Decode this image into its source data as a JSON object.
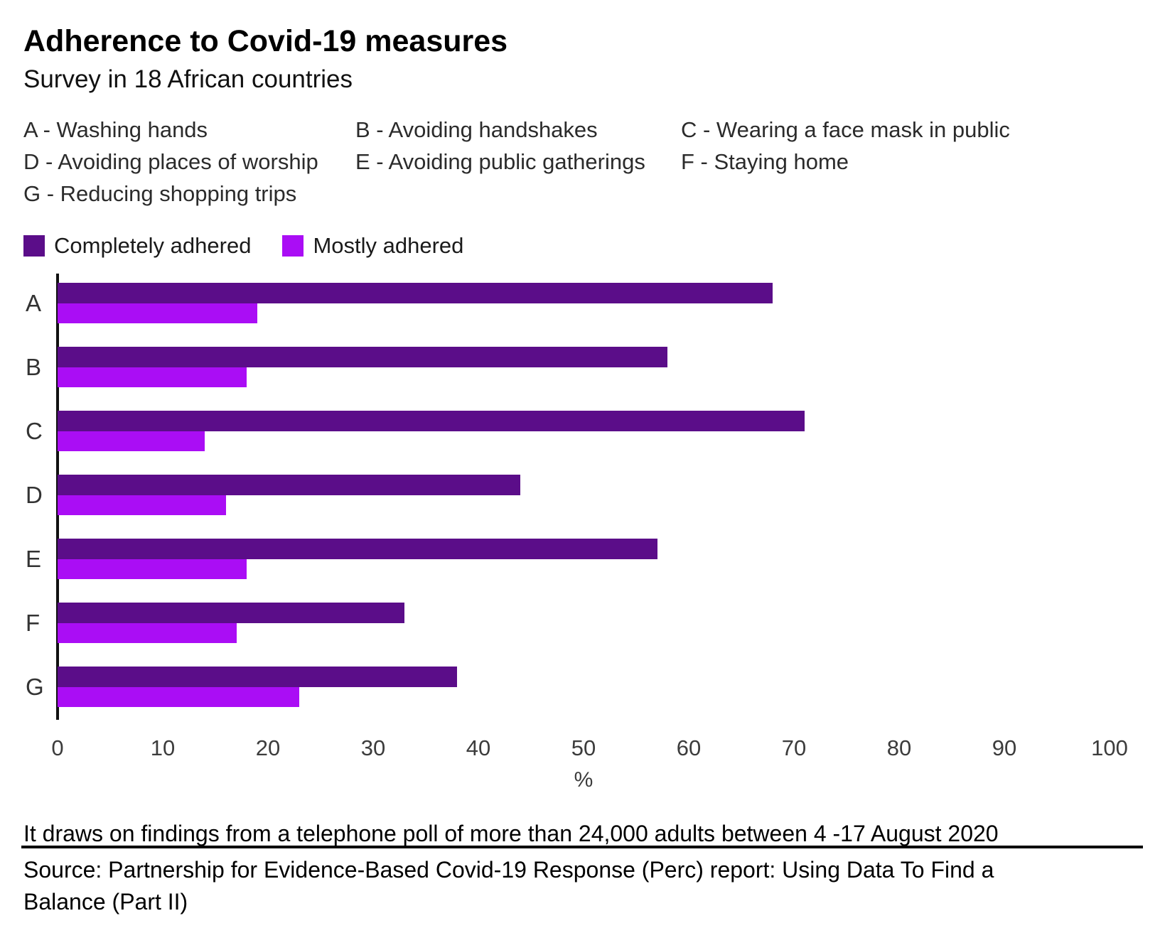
{
  "header": {
    "title": "Adherence to Covid-19 measures",
    "subtitle": "Survey in 18 African countries"
  },
  "key": {
    "items": [
      "A - Washing hands",
      "B - Avoiding handshakes",
      "C - Wearing a face mask in public",
      "D - Avoiding places of worship",
      "E - Avoiding public gatherings",
      "F - Staying home",
      "G - Reducing shopping trips"
    ]
  },
  "legend": {
    "items": [
      {
        "label": "Completely adhered",
        "color": "#5b0d89"
      },
      {
        "label": "Mostly adhered",
        "color": "#aa0df5"
      }
    ]
  },
  "chart_data": {
    "type": "bar",
    "orientation": "horizontal",
    "title": "Adherence to Covid-19 measures",
    "subtitle": "Survey in 18 African countries",
    "categories": [
      "A",
      "B",
      "C",
      "D",
      "E",
      "F",
      "G"
    ],
    "category_meanings": {
      "A": "Washing hands",
      "B": "Avoiding handshakes",
      "C": "Wearing a face mask in public",
      "D": "Avoiding places of worship",
      "E": "Avoiding public gatherings",
      "F": "Staying home",
      "G": "Reducing shopping trips"
    },
    "series": [
      {
        "name": "Completely adhered",
        "color": "#5b0d89",
        "values": [
          68,
          58,
          71,
          44,
          57,
          33,
          38
        ]
      },
      {
        "name": "Mostly adhered",
        "color": "#aa0df5",
        "values": [
          19,
          18,
          14,
          16,
          18,
          17,
          23
        ]
      }
    ],
    "xlabel": "%",
    "ylabel": "",
    "xlim": [
      0,
      100
    ],
    "x_ticks": [
      0,
      10,
      20,
      30,
      40,
      50,
      60,
      70,
      80,
      90,
      100
    ],
    "grid": false,
    "legend_position": "top-left"
  },
  "footer": {
    "note": "It draws on findings from a telephone poll of more than 24,000 adults between 4 -17 August 2020",
    "source": "Source: Partnership for Evidence-Based Covid-19 Response (Perc) report: Using Data To Find a Balance (Part II)"
  }
}
